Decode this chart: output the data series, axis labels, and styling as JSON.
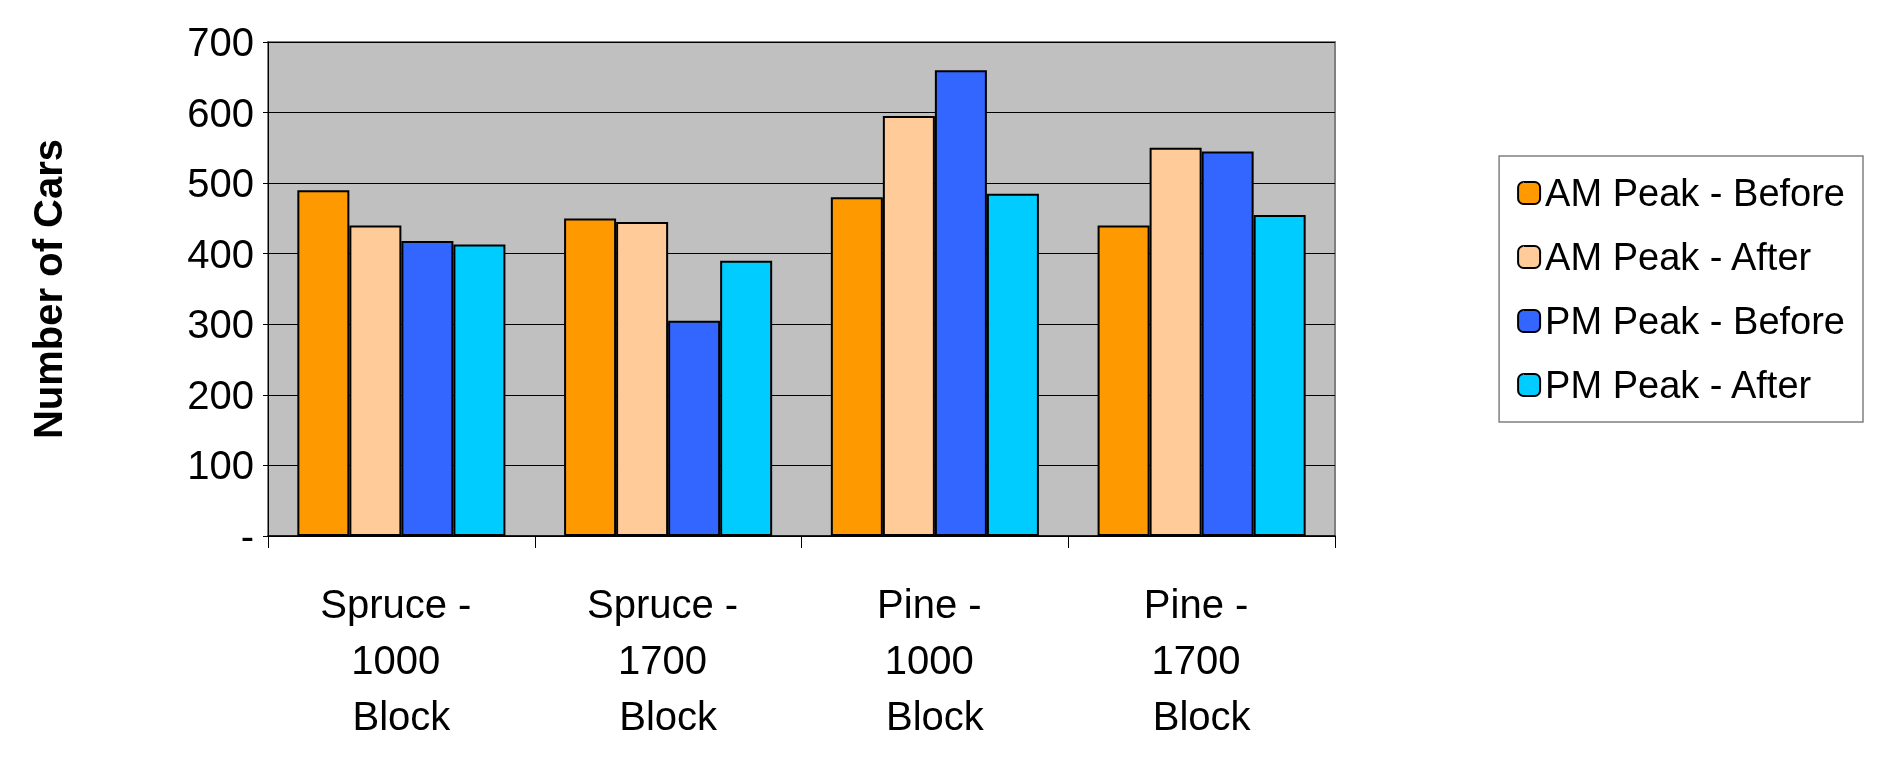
{
  "chart_data": {
    "type": "bar",
    "ylabel": "Number of Cars",
    "categories": [
      "Spruce - 1000 Block",
      "Spruce - 1700 Block",
      "Pine - 1000 Block",
      "Pine - 1700 Block"
    ],
    "series": [
      {
        "name": "AM Peak - Before",
        "color": "#ff9900",
        "values": [
          490,
          450,
          480,
          440
        ]
      },
      {
        "name": "AM Peak - After",
        "color": "#ffcc99",
        "values": [
          440,
          445,
          595,
          550
        ]
      },
      {
        "name": "PM Peak - Before",
        "color": "#3366ff",
        "values": [
          418,
          305,
          660,
          545
        ]
      },
      {
        "name": "PM Peak - After",
        "color": "#00ccff",
        "values": [
          413,
          390,
          485,
          455
        ]
      }
    ],
    "ylim": [
      0,
      700
    ],
    "yticks": [
      {
        "value": 0,
        "label": "-"
      },
      100,
      200,
      300,
      400,
      500,
      600,
      700
    ],
    "grid": "y",
    "legend": "right"
  }
}
